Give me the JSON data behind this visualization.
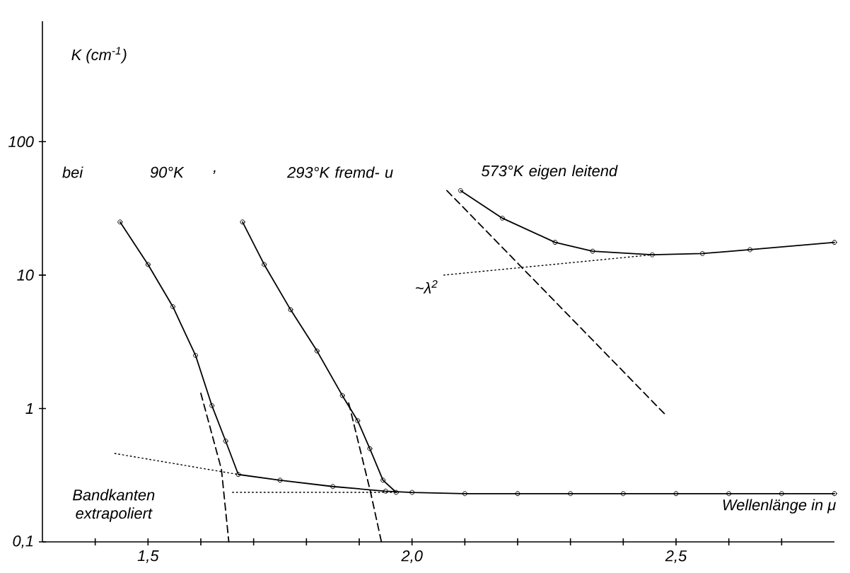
{
  "chart_data": {
    "type": "line",
    "xlabel": "Wellenlänge in μ",
    "ylabel": "K (cm$^{-1}$)",
    "xlim": [
      1.3,
      2.8
    ],
    "ylim": [
      0.1,
      800
    ],
    "log": true,
    "xticks": [
      {
        "value": 1.4,
        "label": null
      },
      {
        "value": 1.5,
        "label": "1,5"
      },
      {
        "value": 1.6,
        "label": null
      },
      {
        "value": 1.7,
        "label": null
      },
      {
        "value": 1.8,
        "label": null
      },
      {
        "value": 1.9,
        "label": null
      },
      {
        "value": 2.0,
        "label": "2,0"
      },
      {
        "value": 2.1,
        "label": null
      },
      {
        "value": 2.2,
        "label": null
      },
      {
        "value": 2.3,
        "label": null
      },
      {
        "value": 2.4,
        "label": null
      },
      {
        "value": 2.5,
        "label": "2,5"
      },
      {
        "value": 2.6,
        "label": null
      },
      {
        "value": 2.7,
        "label": null
      }
    ],
    "yticks": [
      {
        "value": 0.1,
        "label": "0,1"
      },
      1,
      10,
      100
    ],
    "grid": false,
    "series": [
      {
        "color": "#000000",
        "marker": "circle",
        "line_style": "solid",
        "x": [
          1.447,
          1.5,
          1.547,
          1.59,
          1.621,
          1.647,
          1.671,
          1.75,
          1.85,
          1.95,
          2.0,
          2.1,
          2.2,
          2.3,
          2.4,
          2.5,
          2.6,
          2.7,
          2.8
        ],
        "values": [
          25,
          12,
          5.8,
          2.5,
          1.05,
          0.57,
          0.32,
          0.29,
          0.26,
          0.24,
          0.235,
          0.23,
          0.23,
          0.23,
          0.23,
          0.23,
          0.23,
          0.23,
          0.23
        ]
      },
      {
        "color": "#000000",
        "marker": "circle",
        "line_style": "solid",
        "x": [
          1.679,
          1.72,
          1.77,
          1.82,
          1.868,
          1.897,
          1.92,
          1.945,
          1.97
        ],
        "values": [
          25,
          12,
          5.5,
          2.7,
          1.25,
          0.81,
          0.5,
          0.29,
          0.235
        ]
      },
      {
        "color": "#000000",
        "marker": "circle",
        "line_style": "solid",
        "x": [
          2.092,
          2.171,
          2.271,
          2.342,
          2.455,
          2.55,
          2.64,
          2.8
        ],
        "values": [
          43,
          26.7,
          17.6,
          15.1,
          14.2,
          14.5,
          15.5,
          17.6
        ]
      },
      {
        "color": "#000000",
        "marker": "none",
        "line_style": "dashed",
        "x": [
          1.6,
          1.639,
          1.653
        ],
        "values": [
          1.3,
          0.35,
          0.1
        ]
      },
      {
        "color": "#000000",
        "marker": "none",
        "line_style": "dashed",
        "x": [
          1.88,
          1.921,
          1.942
        ],
        "values": [
          1.1,
          0.24,
          0.1
        ]
      },
      {
        "color": "#000000",
        "marker": "none",
        "line_style": "dashed",
        "x": [
          2.066,
          2.482
        ],
        "values": [
          43,
          0.88
        ]
      },
      {
        "color": "#000000",
        "marker": "none",
        "line_style": "dotted",
        "x": [
          1.437,
          1.671
        ],
        "values": [
          0.46,
          0.32
        ]
      },
      {
        "color": "#000000",
        "marker": "none",
        "line_style": "dotted",
        "x": [
          1.66,
          1.97
        ],
        "values": [
          0.235,
          0.235
        ]
      },
      {
        "color": "#000000",
        "marker": "none",
        "line_style": "dotted",
        "x": [
          2.06,
          2.455
        ],
        "values": [
          10,
          14.2
        ]
      }
    ],
    "annotations": [
      "bei",
      "90°K",
      ",",
      "293°K fremd- u",
      "573°K eigen leitend",
      "~λ$^{2}$",
      "Bandkanten extrapoliert"
    ]
  }
}
